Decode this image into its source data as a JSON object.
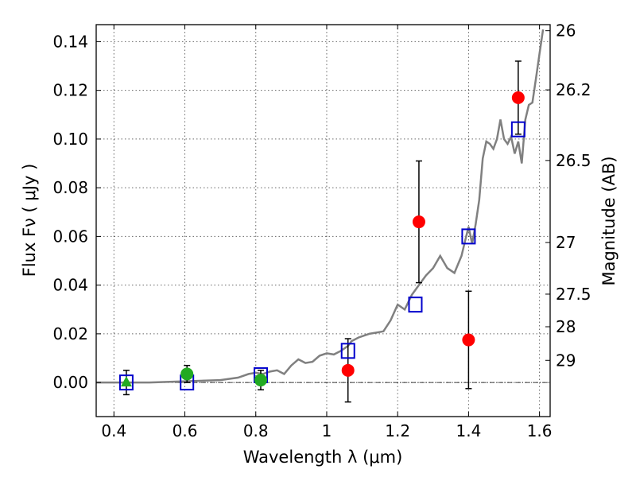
{
  "chart_data": {
    "type": "scatter",
    "xlabel": "Wavelength  λ (μm)",
    "ylabel": "Flux  Fν  ( μJy )",
    "y2label": "Magnitude (AB)",
    "xlim": [
      0.35,
      1.63
    ],
    "ylim": [
      -0.014,
      0.147
    ],
    "x_ticks": [
      0.4,
      0.6,
      0.8,
      1.0,
      1.2,
      1.4,
      1.6
    ],
    "x_tick_labels": [
      "0.4",
      "0.6",
      "0.8",
      "1",
      "1.2",
      "1.4",
      "1.6"
    ],
    "y_ticks": [
      0.0,
      0.02,
      0.04,
      0.06,
      0.08,
      0.1,
      0.12,
      0.14
    ],
    "y_tick_labels": [
      "0.00",
      "0.02",
      "0.04",
      "0.06",
      "0.08",
      "0.10",
      "0.12",
      "0.14"
    ],
    "mag_ticks": [
      {
        "label": "26",
        "flux": 0.1445
      },
      {
        "label": "26.2",
        "flux": 0.1202
      },
      {
        "label": "26.5",
        "flux": 0.0912
      },
      {
        "label": "27",
        "flux": 0.0575
      },
      {
        "label": "27.5",
        "flux": 0.0363
      },
      {
        "label": "28",
        "flux": 0.0229
      },
      {
        "label": "29",
        "flux": 0.0091
      }
    ],
    "grid": true,
    "colors": {
      "model": "#808080",
      "model_photometry": "#0000cc",
      "detection": "#ff0000",
      "optical": "#22aa22",
      "errorbar": "#000000"
    },
    "series": [
      {
        "kind": "model_spectrum",
        "color": "#808080",
        "x": [
          0.35,
          0.5,
          0.6,
          0.7,
          0.75,
          0.78,
          0.8,
          0.82,
          0.84,
          0.86,
          0.88,
          0.9,
          0.92,
          0.94,
          0.96,
          0.98,
          1.0,
          1.02,
          1.04,
          1.06,
          1.07,
          1.09,
          1.12,
          1.14,
          1.16,
          1.18,
          1.2,
          1.22,
          1.24,
          1.26,
          1.28,
          1.3,
          1.32,
          1.34,
          1.36,
          1.38,
          1.39,
          1.4,
          1.41,
          1.42,
          1.43,
          1.44,
          1.45,
          1.46,
          1.47,
          1.48,
          1.49,
          1.5,
          1.51,
          1.52,
          1.53,
          1.54,
          1.55,
          1.56,
          1.57,
          1.58,
          1.59,
          1.6,
          1.61
        ],
        "y": [
          0.0,
          0.0,
          0.0005,
          0.001,
          0.002,
          0.0035,
          0.004,
          0.0035,
          0.0045,
          0.005,
          0.0035,
          0.007,
          0.0095,
          0.008,
          0.0085,
          0.011,
          0.012,
          0.0115,
          0.013,
          0.015,
          0.017,
          0.0185,
          0.02,
          0.0205,
          0.021,
          0.0255,
          0.032,
          0.03,
          0.036,
          0.04,
          0.044,
          0.047,
          0.052,
          0.047,
          0.045,
          0.052,
          0.058,
          0.064,
          0.057,
          0.065,
          0.075,
          0.092,
          0.099,
          0.098,
          0.096,
          0.1,
          0.108,
          0.1,
          0.098,
          0.101,
          0.094,
          0.099,
          0.09,
          0.108,
          0.114,
          0.115,
          0.125,
          0.135,
          0.145
        ]
      },
      {
        "kind": "model_photometry",
        "marker": "open-square",
        "color": "#0000cc",
        "x": [
          0.435,
          0.606,
          0.814,
          1.06,
          1.25,
          1.4,
          1.54
        ],
        "y": [
          0.0,
          0.0,
          0.003,
          0.013,
          0.032,
          0.06,
          0.104
        ]
      },
      {
        "kind": "detections",
        "marker": "circle",
        "color": "#ff0000",
        "x": [
          1.06,
          1.26,
          1.4,
          1.54
        ],
        "y": [
          0.005,
          0.066,
          0.0175,
          0.117
        ],
        "err": [
          0.013,
          0.025,
          0.02,
          0.015
        ]
      },
      {
        "kind": "optical",
        "marker": "circle",
        "color": "#22aa22",
        "x": [
          0.606,
          0.814
        ],
        "y": [
          0.0035,
          0.001
        ],
        "err": [
          0.0035,
          0.004
        ]
      },
      {
        "kind": "optical-triangle",
        "marker": "triangle",
        "color": "#22aa22",
        "x": [
          0.435
        ],
        "y": [
          0.0
        ],
        "err": [
          0.005
        ]
      }
    ]
  }
}
